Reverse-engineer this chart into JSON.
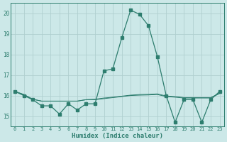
{
  "xlabel": "Humidex (Indice chaleur)",
  "x": [
    0,
    1,
    2,
    3,
    4,
    5,
    6,
    7,
    8,
    9,
    10,
    11,
    12,
    13,
    14,
    15,
    16,
    17,
    18,
    19,
    20,
    21,
    22,
    23
  ],
  "line1": [
    16.2,
    16.0,
    15.8,
    15.5,
    15.5,
    15.1,
    15.6,
    15.3,
    15.6,
    15.6,
    17.2,
    17.3,
    18.8,
    20.15,
    19.95,
    19.4,
    17.9,
    16.0,
    14.7,
    15.8,
    15.8,
    14.7,
    15.8,
    16.2
  ],
  "line2": [
    16.2,
    16.05,
    15.82,
    15.73,
    15.73,
    15.73,
    15.73,
    15.73,
    15.8,
    15.8,
    15.85,
    15.9,
    15.95,
    16.0,
    16.02,
    16.03,
    16.05,
    15.95,
    15.92,
    15.88,
    15.88,
    15.88,
    15.88,
    16.1
  ],
  "line3": [
    16.2,
    16.05,
    15.82,
    15.73,
    15.73,
    15.73,
    15.73,
    15.73,
    15.8,
    15.82,
    15.88,
    15.92,
    15.97,
    16.02,
    16.05,
    16.06,
    16.08,
    15.98,
    15.95,
    15.9,
    15.9,
    15.9,
    15.9,
    16.12
  ],
  "line_color": "#2d7d6e",
  "bg_color": "#cce8e8",
  "grid_color": "#b0cfcf",
  "tick_color": "#2d7d6e",
  "ylim": [
    14.5,
    20.5
  ],
  "yticks": [
    15,
    16,
    17,
    18,
    19,
    20
  ],
  "xlim": [
    -0.5,
    23.5
  ]
}
